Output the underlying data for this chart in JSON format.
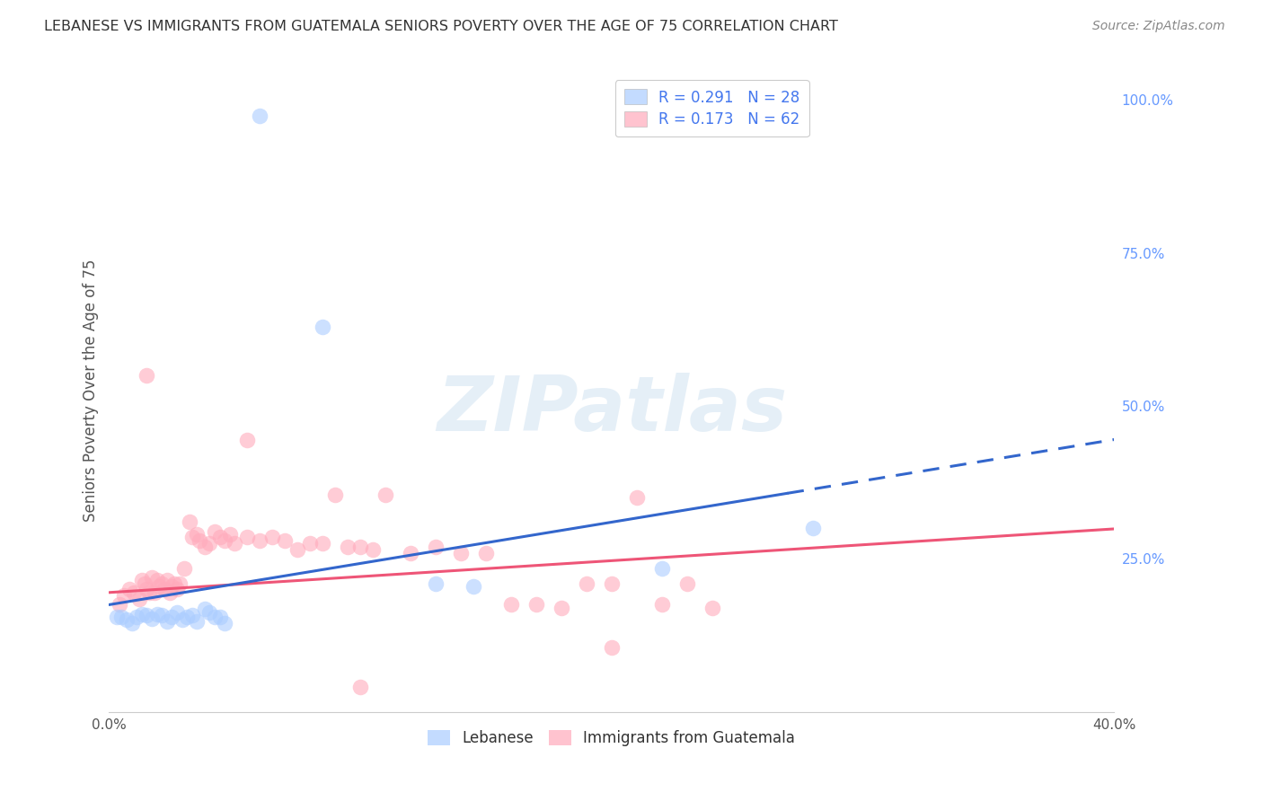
{
  "title": "LEBANESE VS IMMIGRANTS FROM GUATEMALA SENIORS POVERTY OVER THE AGE OF 75 CORRELATION CHART",
  "source": "Source: ZipAtlas.com",
  "ylabel": "Seniors Poverty Over the Age of 75",
  "xlim": [
    0.0,
    0.4
  ],
  "ylim": [
    0.0,
    1.05
  ],
  "legend1_label": "R = 0.291   N = 28",
  "legend2_label": "R = 0.173   N = 62",
  "series1_label": "Lebanese",
  "series2_label": "Immigrants from Guatemala",
  "watermark": "ZIPatlas",
  "background_color": "#ffffff",
  "grid_color": "#dddddd",
  "title_color": "#333333",
  "axis_label_color": "#555555",
  "right_tick_color": "#6699ff",
  "blue_color": "#aaccff",
  "pink_color": "#ffaabb",
  "blue_line_color": "#3366cc",
  "pink_line_color": "#ee5577",
  "blue_scatter": [
    [
      0.003,
      0.155
    ],
    [
      0.005,
      0.155
    ],
    [
      0.007,
      0.15
    ],
    [
      0.009,
      0.145
    ],
    [
      0.011,
      0.155
    ],
    [
      0.013,
      0.16
    ],
    [
      0.015,
      0.158
    ],
    [
      0.017,
      0.152
    ],
    [
      0.019,
      0.16
    ],
    [
      0.021,
      0.158
    ],
    [
      0.023,
      0.148
    ],
    [
      0.025,
      0.155
    ],
    [
      0.027,
      0.162
    ],
    [
      0.029,
      0.15
    ],
    [
      0.031,
      0.155
    ],
    [
      0.033,
      0.158
    ],
    [
      0.035,
      0.148
    ],
    [
      0.038,
      0.168
    ],
    [
      0.04,
      0.162
    ],
    [
      0.042,
      0.155
    ],
    [
      0.044,
      0.155
    ],
    [
      0.046,
      0.145
    ],
    [
      0.06,
      0.975
    ],
    [
      0.085,
      0.63
    ],
    [
      0.13,
      0.21
    ],
    [
      0.145,
      0.205
    ],
    [
      0.22,
      0.235
    ],
    [
      0.28,
      0.3
    ]
  ],
  "pink_scatter": [
    [
      0.004,
      0.175
    ],
    [
      0.006,
      0.19
    ],
    [
      0.008,
      0.2
    ],
    [
      0.01,
      0.195
    ],
    [
      0.012,
      0.185
    ],
    [
      0.013,
      0.215
    ],
    [
      0.014,
      0.21
    ],
    [
      0.015,
      0.2
    ],
    [
      0.016,
      0.195
    ],
    [
      0.017,
      0.22
    ],
    [
      0.018,
      0.195
    ],
    [
      0.019,
      0.215
    ],
    [
      0.02,
      0.205
    ],
    [
      0.021,
      0.21
    ],
    [
      0.022,
      0.2
    ],
    [
      0.023,
      0.215
    ],
    [
      0.024,
      0.195
    ],
    [
      0.025,
      0.205
    ],
    [
      0.026,
      0.21
    ],
    [
      0.027,
      0.2
    ],
    [
      0.028,
      0.21
    ],
    [
      0.03,
      0.235
    ],
    [
      0.032,
      0.31
    ],
    [
      0.033,
      0.285
    ],
    [
      0.035,
      0.29
    ],
    [
      0.036,
      0.28
    ],
    [
      0.038,
      0.27
    ],
    [
      0.04,
      0.275
    ],
    [
      0.042,
      0.295
    ],
    [
      0.044,
      0.285
    ],
    [
      0.046,
      0.28
    ],
    [
      0.048,
      0.29
    ],
    [
      0.05,
      0.275
    ],
    [
      0.055,
      0.285
    ],
    [
      0.06,
      0.28
    ],
    [
      0.065,
      0.285
    ],
    [
      0.07,
      0.28
    ],
    [
      0.075,
      0.265
    ],
    [
      0.08,
      0.275
    ],
    [
      0.085,
      0.275
    ],
    [
      0.09,
      0.355
    ],
    [
      0.095,
      0.27
    ],
    [
      0.1,
      0.27
    ],
    [
      0.105,
      0.265
    ],
    [
      0.11,
      0.355
    ],
    [
      0.12,
      0.26
    ],
    [
      0.13,
      0.27
    ],
    [
      0.14,
      0.26
    ],
    [
      0.15,
      0.26
    ],
    [
      0.16,
      0.175
    ],
    [
      0.17,
      0.175
    ],
    [
      0.18,
      0.17
    ],
    [
      0.19,
      0.21
    ],
    [
      0.2,
      0.21
    ],
    [
      0.21,
      0.35
    ],
    [
      0.22,
      0.175
    ],
    [
      0.23,
      0.21
    ],
    [
      0.24,
      0.17
    ],
    [
      0.015,
      0.55
    ],
    [
      0.055,
      0.445
    ],
    [
      0.1,
      0.04
    ],
    [
      0.2,
      0.105
    ]
  ],
  "blue_regression": {
    "x_start": 0.0,
    "x_end": 0.4,
    "x_solid_end": 0.27,
    "slope": 0.675,
    "intercept": 0.175
  },
  "pink_regression": {
    "x_start": 0.0,
    "x_end": 0.4,
    "slope": 0.26,
    "intercept": 0.195
  }
}
